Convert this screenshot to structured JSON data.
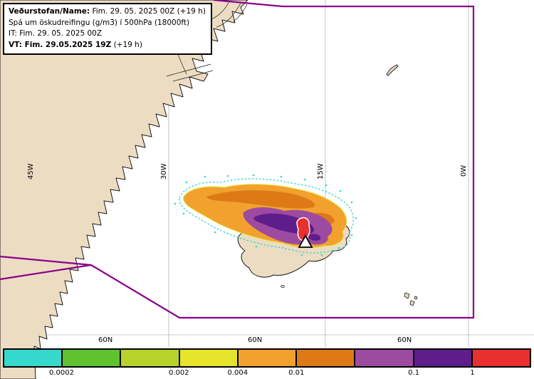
{
  "info_box": {
    "line1_label": "Veðurstofan/Name:",
    "line1_value": "Fim. 29. 05. 2025 00Z (+19 h)",
    "line2": "Spá um öskudreifingu (g/m3) í 500hPa (18000ft)",
    "line3": "IT: Fim. 29. 05. 2025 00Z",
    "line4_bold": "VT: Fim. 29.05.2025 19Z",
    "line4_suffix": "(+19 h)"
  },
  "map": {
    "land_color": "#ecdcc2",
    "sea_color": "#ffffff",
    "coast_color": "#1a1a1a",
    "boundary_color": "#8b008b",
    "meridian_labels": [
      {
        "text": "45W"
      },
      {
        "text": "30W"
      },
      {
        "text": "15W"
      },
      {
        "text": "0W"
      }
    ],
    "parallel_labels": [
      {
        "text": "60N"
      },
      {
        "text": "60N"
      },
      {
        "text": "60N"
      }
    ],
    "volcano_marker": "volcano-triangle"
  },
  "colorbar": {
    "segments": [
      "#35d8cc",
      "#5fc22f",
      "#b7d32b",
      "#e6e32b",
      "#f2a12e",
      "#dd7a16",
      "#9d4ba0",
      "#5f1d8c",
      "#e8302e"
    ],
    "labels": [
      {
        "text": "0.0002",
        "boundary": 1
      },
      {
        "text": "0.002",
        "boundary": 3
      },
      {
        "text": "0.004",
        "boundary": 4
      },
      {
        "text": "0.01",
        "boundary": 5
      },
      {
        "text": "0.1",
        "boundary": 7
      },
      {
        "text": "1",
        "boundary": 8
      }
    ]
  }
}
